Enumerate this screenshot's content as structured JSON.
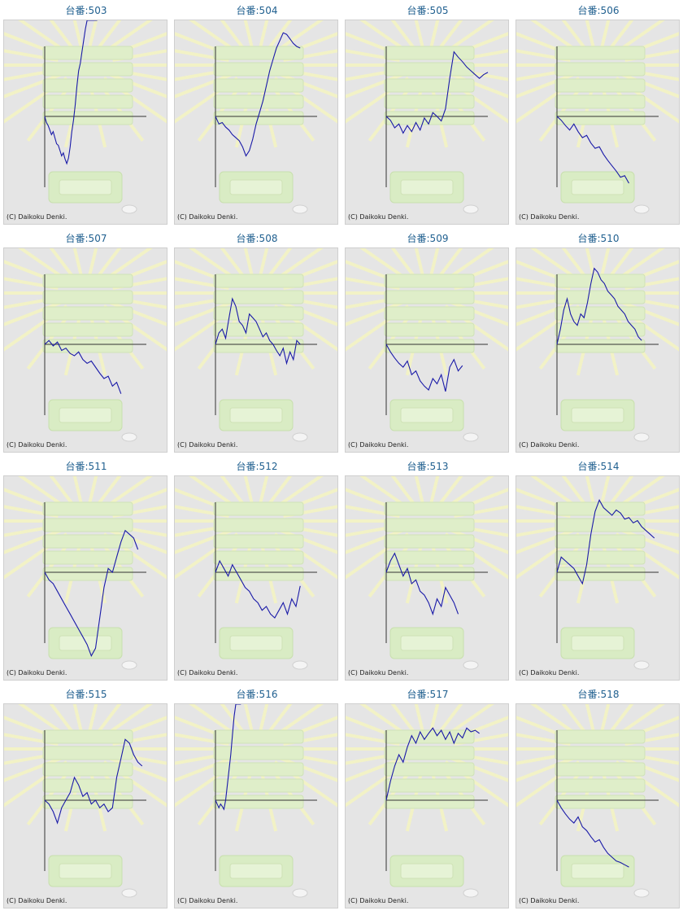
{
  "credit_text": "(C) Daikoku Denki.",
  "colors": {
    "line": "#1a1aa8",
    "axis": "#333333",
    "title": "#1f5f8f",
    "panel_bg": "#e5e5e5"
  },
  "chart_data": [
    {
      "type": "line",
      "title": "台番:503",
      "x": [
        0,
        2,
        4,
        6,
        8,
        10,
        12,
        14,
        16,
        18,
        20,
        22,
        24,
        26,
        28,
        30,
        32,
        34,
        36,
        38,
        40,
        42,
        44,
        46,
        48,
        50,
        52,
        54,
        56,
        58,
        60,
        62
      ],
      "values": [
        0,
        -8,
        -12,
        -18,
        -24,
        -20,
        -28,
        -36,
        -38,
        -45,
        -52,
        -48,
        -56,
        -62,
        -55,
        -40,
        -20,
        -5,
        15,
        40,
        60,
        70,
        85,
        100,
        115,
        130,
        140,
        150,
        160,
        165,
        162,
        160
      ]
    },
    {
      "type": "line",
      "title": "台番:504",
      "x": [
        0,
        4,
        8,
        12,
        16,
        20,
        24,
        28,
        32,
        36,
        40,
        44,
        48,
        52,
        56,
        60,
        64,
        68,
        72,
        76,
        80,
        84,
        88,
        92,
        96,
        100
      ],
      "values": [
        0,
        -10,
        -8,
        -14,
        -18,
        -24,
        -28,
        -32,
        -40,
        -52,
        -45,
        -30,
        -10,
        5,
        20,
        40,
        60,
        75,
        90,
        100,
        110,
        108,
        102,
        96,
        92,
        90
      ]
    },
    {
      "type": "line",
      "title": "台番:505",
      "x": [
        0,
        5,
        10,
        15,
        20,
        25,
        30,
        35,
        40,
        45,
        50,
        55,
        60,
        65,
        70,
        75,
        80,
        85,
        90,
        95,
        100,
        105,
        110,
        115,
        120
      ],
      "values": [
        0,
        -5,
        -15,
        -10,
        -22,
        -12,
        -20,
        -8,
        -18,
        -2,
        -10,
        5,
        0,
        -6,
        10,
        50,
        85,
        78,
        72,
        65,
        60,
        55,
        50,
        55,
        58
      ]
    },
    {
      "type": "line",
      "title": "台番:506",
      "x": [
        0,
        5,
        10,
        15,
        20,
        25,
        30,
        35,
        40,
        45,
        50,
        55,
        60,
        65,
        70,
        75,
        80,
        85
      ],
      "values": [
        0,
        -5,
        -12,
        -18,
        -10,
        -20,
        -28,
        -25,
        -35,
        -42,
        -40,
        -50,
        -58,
        -65,
        -72,
        -80,
        -78,
        -88
      ]
    },
    {
      "type": "line",
      "title": "台番:507",
      "x": [
        0,
        5,
        10,
        15,
        20,
        25,
        30,
        35,
        40,
        45,
        50,
        55,
        60,
        65,
        70,
        75,
        80,
        85,
        90
      ],
      "values": [
        0,
        5,
        -2,
        3,
        -8,
        -5,
        -12,
        -15,
        -10,
        -20,
        -25,
        -22,
        -30,
        -38,
        -45,
        -42,
        -55,
        -50,
        -65
      ]
    },
    {
      "type": "line",
      "title": "台番:508",
      "x": [
        0,
        4,
        8,
        12,
        16,
        20,
        24,
        28,
        32,
        36,
        40,
        44,
        48,
        52,
        56,
        60,
        64,
        68,
        72,
        76,
        80,
        84,
        88,
        92,
        96,
        100
      ],
      "values": [
        0,
        15,
        20,
        8,
        35,
        60,
        50,
        30,
        25,
        15,
        40,
        35,
        30,
        20,
        10,
        15,
        5,
        0,
        -8,
        -15,
        -5,
        -25,
        -10,
        -20,
        5,
        0
      ]
    },
    {
      "type": "line",
      "title": "台番:509",
      "x": [
        0,
        5,
        10,
        15,
        20,
        25,
        30,
        35,
        40,
        45,
        50,
        55,
        60,
        65,
        70,
        75,
        80,
        85,
        90
      ],
      "values": [
        0,
        -10,
        -18,
        -25,
        -30,
        -22,
        -40,
        -35,
        -48,
        -55,
        -60,
        -45,
        -52,
        -40,
        -62,
        -30,
        -20,
        -35,
        -28
      ]
    },
    {
      "type": "line",
      "title": "台番:510",
      "x": [
        0,
        4,
        8,
        12,
        16,
        20,
        24,
        28,
        32,
        36,
        40,
        44,
        48,
        52,
        56,
        60,
        64,
        68,
        72,
        76,
        80,
        84,
        88,
        92,
        96,
        100
      ],
      "values": [
        0,
        20,
        45,
        60,
        40,
        30,
        25,
        40,
        35,
        55,
        80,
        100,
        95,
        85,
        80,
        70,
        65,
        60,
        50,
        45,
        40,
        30,
        25,
        20,
        10,
        5
      ]
    },
    {
      "type": "line",
      "title": "台番:511",
      "x": [
        0,
        5,
        10,
        15,
        20,
        25,
        30,
        35,
        40,
        45,
        50,
        55,
        60,
        65,
        70,
        75,
        80,
        85,
        90,
        95,
        100,
        105,
        110
      ],
      "values": [
        0,
        -10,
        -15,
        -25,
        -35,
        -45,
        -55,
        -65,
        -75,
        -85,
        -95,
        -110,
        -100,
        -60,
        -20,
        5,
        0,
        20,
        40,
        55,
        50,
        45,
        30
      ]
    },
    {
      "type": "line",
      "title": "台番:512",
      "x": [
        0,
        5,
        10,
        15,
        20,
        25,
        30,
        35,
        40,
        45,
        50,
        55,
        60,
        65,
        70,
        75,
        80,
        85,
        90,
        95,
        100
      ],
      "values": [
        0,
        15,
        5,
        -5,
        10,
        0,
        -10,
        -20,
        -25,
        -35,
        -40,
        -50,
        -45,
        -55,
        -60,
        -50,
        -40,
        -55,
        -35,
        -45,
        -18
      ]
    },
    {
      "type": "line",
      "title": "台番:513",
      "x": [
        0,
        5,
        10,
        15,
        20,
        25,
        30,
        35,
        40,
        45,
        50,
        55,
        60,
        65,
        70,
        75,
        80,
        85
      ],
      "values": [
        0,
        15,
        25,
        10,
        -5,
        5,
        -15,
        -10,
        -25,
        -30,
        -40,
        -55,
        -35,
        -45,
        -20,
        -30,
        -40,
        -55
      ]
    },
    {
      "type": "line",
      "title": "台番:514",
      "x": [
        0,
        5,
        10,
        15,
        20,
        25,
        30,
        35,
        40,
        45,
        50,
        55,
        60,
        65,
        70,
        75,
        80,
        85,
        90,
        95,
        100,
        105,
        110,
        115
      ],
      "values": [
        0,
        20,
        15,
        10,
        5,
        -5,
        -15,
        10,
        50,
        80,
        95,
        85,
        80,
        75,
        82,
        78,
        70,
        72,
        65,
        68,
        60,
        55,
        50,
        45
      ]
    },
    {
      "type": "line",
      "title": "台番:515",
      "x": [
        0,
        5,
        10,
        15,
        20,
        25,
        30,
        35,
        40,
        45,
        50,
        55,
        60,
        65,
        70,
        75,
        80,
        85,
        90,
        95,
        100,
        105,
        110,
        115
      ],
      "values": [
        0,
        -5,
        -15,
        -30,
        -10,
        0,
        10,
        30,
        20,
        5,
        10,
        -5,
        0,
        -10,
        -5,
        -15,
        -10,
        30,
        55,
        80,
        75,
        60,
        50,
        45
      ]
    },
    {
      "type": "line",
      "title": "台番:516",
      "x": [
        0,
        2,
        4,
        6,
        8,
        10,
        12,
        14,
        16,
        18,
        20,
        22,
        24,
        26,
        28,
        30
      ],
      "values": [
        0,
        -5,
        -10,
        -5,
        -8,
        -12,
        0,
        20,
        40,
        60,
        85,
        110,
        130,
        150,
        165,
        175
      ]
    },
    {
      "type": "line",
      "title": "台番:517",
      "x": [
        0,
        5,
        10,
        15,
        20,
        25,
        30,
        35,
        40,
        45,
        50,
        55,
        60,
        65,
        70,
        75,
        80,
        85,
        90,
        95,
        100,
        105,
        110
      ],
      "values": [
        0,
        25,
        45,
        60,
        50,
        70,
        85,
        75,
        90,
        80,
        88,
        95,
        85,
        92,
        80,
        90,
        75,
        88,
        82,
        95,
        90,
        92,
        88
      ]
    },
    {
      "type": "line",
      "title": "台番:518",
      "x": [
        0,
        5,
        10,
        15,
        20,
        25,
        30,
        35,
        40,
        45,
        50,
        55,
        60,
        65,
        70,
        75,
        80,
        85
      ],
      "values": [
        0,
        -10,
        -18,
        -25,
        -30,
        -22,
        -35,
        -40,
        -48,
        -55,
        -52,
        -62,
        -70,
        -75,
        -80,
        -82,
        -85,
        -88
      ]
    }
  ]
}
